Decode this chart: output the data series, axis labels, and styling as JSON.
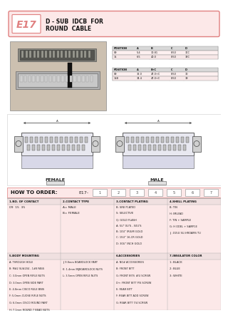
{
  "bg_color": "#ffffff",
  "header_bg": "#fce8e8",
  "header_border": "#e08080",
  "section_bg": "#fce8e8",
  "table_bg": "#fce8e8",
  "title_e17": "E17",
  "how_to_order_label": "HOW TO ORDER:",
  "e17_code": "E17-",
  "order_nums": [
    "1",
    "2",
    "3",
    "4",
    "5",
    "6",
    "7"
  ],
  "col1_header": "1.NO. OF CONTACT",
  "col2_header": "2.CONTACT TYPE",
  "col3_header": "3.CONTACT PLATING",
  "col4_header": "4.SHELL PLATING",
  "col1_vals": [
    "09  15  35"
  ],
  "col2_vals": [
    "A= MALE",
    "B= FEMALE"
  ],
  "col3_vals": [
    "B: SINI PLATED",
    "S: SELECTIVE",
    "Q: GOLD FLASH",
    "A: 5U\" 0U'S - 50U'S",
    "B: 10U\" IRIUM GOLD",
    "C: 15U\" 16-CR GOLD",
    "D: 30U\" INCH GOLD"
  ],
  "col4_vals": [
    "B: TIN",
    "H: IMLEAD",
    "F: TIN + SAMPLE",
    "G: H ODEL + SAMPLE",
    "J: .015U SU-HROAMS TU"
  ],
  "col5_header": "5.BODY MOUNTING",
  "col6_header": "6.ACCESSORIES",
  "col7_header": "7.INSULATOR COLOR",
  "col5_vals": [
    "A: THROUGH HOLE",
    "B: M#2 SU#204 - 1#8 PASS",
    "C: 3.0mm OPEN RIFLE NUTS",
    "D: 3.0mm OPEN SIDE PART",
    "E: 4.8mm CISCO RULE BNIS",
    "F: 5.0mm CUOSE RIFLE NUTS",
    "G: 6.0mm CISCO ROUND PART",
    "H: 7.1mm ROUND 7 BEAD NUTS"
  ],
  "col5b_vals": [
    "J: 9.8mm BOARDLOCK PART",
    "K: 1.4mm INJBOARDLOCK NUTS",
    "L: 3.5mm OPEN RIFLE NUTS"
  ],
  "col6_vals": [
    "A: NO# ACCESSORIES",
    "B: FRONT BITT",
    "G: FRONT BITS  A/U SCREW",
    "D+: FRONT BITT P/S SCREW",
    "E: REAR BITT",
    "F: REAR BITT ADD SCREW",
    "G: REAR BITT 7/4 SCREW"
  ],
  "col7_vals": [
    "1: BLACK",
    "2: BLUE",
    "3: WHITE"
  ],
  "dim_table1_headers": [
    "POSITION",
    "A",
    "B",
    "C",
    "D"
  ],
  "dim_table1_rows": [
    [
      "09",
      "5.4",
      "30.81",
      "8.50",
      "30C"
    ],
    [
      "15",
      "6.5",
      "40.0",
      "8.50",
      "39C"
    ]
  ],
  "dim_table2_headers": [
    "POSITION",
    "A",
    "B+C",
    "C",
    "D"
  ],
  "dim_table2_rows": [
    [
      "09",
      "32.0",
      "47.0+C",
      "8.50",
      "30"
    ],
    [
      "15B",
      "34.4",
      "47.0+C",
      "8.50",
      "39"
    ]
  ]
}
